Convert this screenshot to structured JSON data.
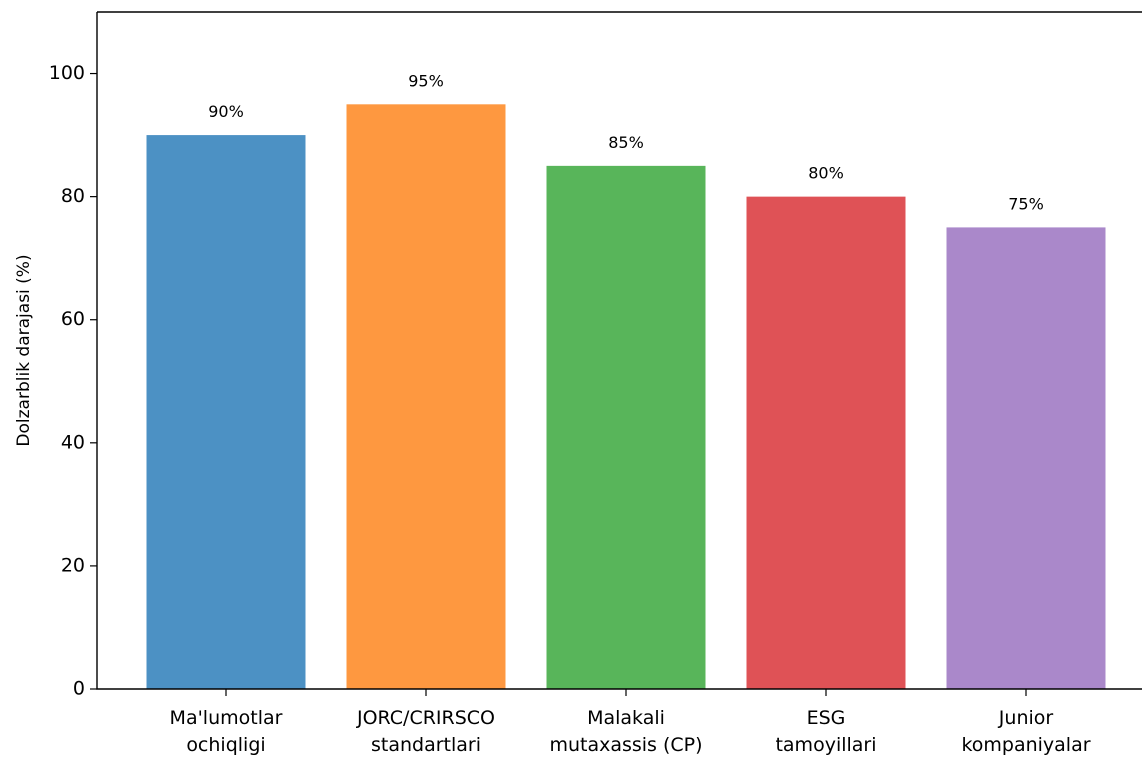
{
  "chart_data": {
    "type": "bar",
    "title": "",
    "xlabel": "",
    "ylabel": "Dolzarblik darajasi (%)",
    "categories": [
      [
        "Ma'lumotlar",
        "ochiqligi"
      ],
      [
        "JORC/CRIRSCO",
        "standartlari"
      ],
      [
        "Malakali",
        "mutaxassis (CP)"
      ],
      [
        "ESG",
        "tamoyillari"
      ],
      [
        "Junior",
        "kompaniyalar"
      ]
    ],
    "values": [
      90,
      95,
      85,
      80,
      75
    ],
    "data_labels": [
      "90%",
      "95%",
      "85%",
      "80%",
      "75%"
    ],
    "colors": [
      "#4c91c4",
      "#fe9840",
      "#58b55a",
      "#df5256",
      "#aa88ca"
    ],
    "ylim": [
      0,
      100
    ],
    "y_ticks": [
      0,
      20,
      40,
      60,
      80,
      100
    ],
    "grid": false,
    "legend": "none"
  }
}
